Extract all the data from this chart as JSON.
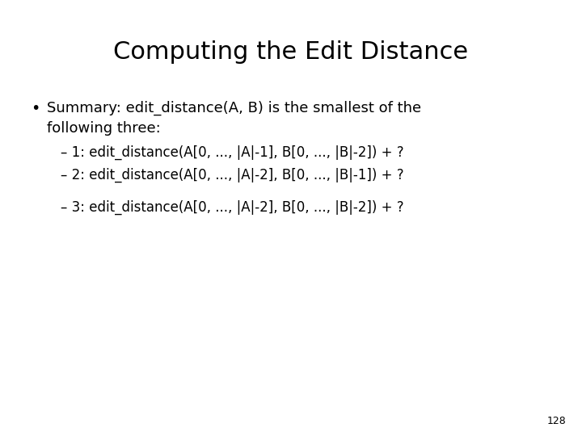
{
  "title": "Computing the Edit Distance",
  "title_fontsize": 22,
  "background_color": "#ffffff",
  "text_color": "#000000",
  "bullet_line1": "Summary: edit_distance(A, B) is the smallest of the",
  "bullet_line2": "following three:",
  "bullet_fontsize": 13,
  "sub1": "– 1: edit_distance(A[0, ..., |A|-1], B[0, ..., |B|-2]) + ?",
  "sub2": "– 2: edit_distance(A[0, ..., |A|-2], B[0, ..., |B|-1]) + ?",
  "sub3": "– 3: edit_distance(A[0, ..., |A|-2], B[0, ..., |B|-2]) + ?",
  "sub_fontsize": 12,
  "page_number": "128",
  "page_fontsize": 9
}
